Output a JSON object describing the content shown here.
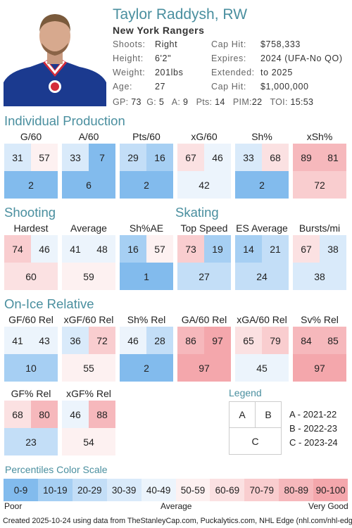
{
  "player": {
    "name": "Taylor Raddysh, RW",
    "team": "New York Rangers",
    "info_left": [
      {
        "label": "Shoots:",
        "value": "Right"
      },
      {
        "label": "Height:",
        "value": "6'2\""
      },
      {
        "label": "Weight:",
        "value": "201lbs"
      },
      {
        "label": "Age:",
        "value": "27"
      }
    ],
    "info_right": [
      {
        "label": "Cap Hit:",
        "value": "$758,333"
      },
      {
        "label": "Expires:",
        "value": "2024 (UFA-No QO)"
      },
      {
        "label": "Extended:",
        "value": "to 2025"
      },
      {
        "label": "Cap Hit:",
        "value": "$1,000,000"
      }
    ],
    "stats": [
      {
        "label": "GP:",
        "value": "73"
      },
      {
        "label": "G:",
        "value": "5"
      },
      {
        "label": "A:",
        "value": "9"
      },
      {
        "label": "Pts:",
        "value": "14"
      },
      {
        "label": "PIM:",
        "value": "22"
      },
      {
        "label": "TOI:",
        "value": "15:53"
      }
    ]
  },
  "sections": {
    "individual": "Individual Production",
    "shooting": "Shooting",
    "skating": "Skating",
    "onice": "On-Ice Relative"
  },
  "metrics": {
    "g60": {
      "label": "G/60",
      "a": "31",
      "b": "57",
      "c": "2",
      "pa": 31,
      "pb": 57,
      "pc": 2
    },
    "a60": {
      "label": "A/60",
      "a": "33",
      "b": "7",
      "c": "6",
      "pa": 33,
      "pb": 7,
      "pc": 6
    },
    "pts60": {
      "label": "Pts/60",
      "a": "29",
      "b": "16",
      "c": "2",
      "pa": 29,
      "pb": 16,
      "pc": 2
    },
    "xg60": {
      "label": "xG/60",
      "a": "67",
      "b": "46",
      "c": "42",
      "pa": 67,
      "pb": 46,
      "pc": 42
    },
    "shp": {
      "label": "Sh%",
      "a": "33",
      "b": "68",
      "c": "2",
      "pa": 33,
      "pb": 68,
      "pc": 2
    },
    "xshp": {
      "label": "xSh%",
      "a": "89",
      "b": "81",
      "c": "72",
      "pa": 89,
      "pb": 81,
      "pc": 72
    },
    "hardest": {
      "label": "Hardest",
      "a": "74",
      "b": "46",
      "c": "60",
      "pa": 74,
      "pb": 46,
      "pc": 60
    },
    "average": {
      "label": "Average",
      "a": "41",
      "b": "48",
      "c": "59",
      "pa": 41,
      "pb": 48,
      "pc": 59
    },
    "shpae": {
      "label": "Sh%AE",
      "a": "16",
      "b": "57",
      "c": "1",
      "pa": 16,
      "pb": 57,
      "pc": 1
    },
    "topspeed": {
      "label": "Top Speed",
      "a": "73",
      "b": "19",
      "c": "27",
      "pa": 73,
      "pb": 19,
      "pc": 27
    },
    "esavg": {
      "label": "ES Average",
      "a": "14",
      "b": "21",
      "c": "24",
      "pa": 14,
      "pb": 21,
      "pc": 24
    },
    "bursts": {
      "label": "Bursts/mi",
      "a": "67",
      "b": "38",
      "c": "38",
      "pa": 67,
      "pb": 38,
      "pc": 38
    },
    "gf60rel": {
      "label": "GF/60 Rel",
      "a": "41",
      "b": "43",
      "c": "10",
      "pa": 41,
      "pb": 43,
      "pc": 10
    },
    "xgf60rel": {
      "label": "xGF/60 Rel",
      "a": "36",
      "b": "72",
      "c": "55",
      "pa": 36,
      "pb": 72,
      "pc": 55
    },
    "shrel": {
      "label": "Sh% Rel",
      "a": "46",
      "b": "28",
      "c": "2",
      "pa": 46,
      "pb": 28,
      "pc": 2
    },
    "ga60rel": {
      "label": "GA/60 Rel",
      "a": "86",
      "b": "97",
      "c": "97",
      "pa": 86,
      "pb": 97,
      "pc": 97
    },
    "xga60rel": {
      "label": "xGA/60 Rel",
      "a": "65",
      "b": "79",
      "c": "45",
      "pa": 65,
      "pb": 79,
      "pc": 45
    },
    "svrel": {
      "label": "Sv% Rel",
      "a": "84",
      "b": "85",
      "c": "97",
      "pa": 84,
      "pb": 85,
      "pc": 97
    },
    "gfprel": {
      "label": "GF% Rel",
      "a": "68",
      "b": "80",
      "c": "23",
      "pa": 68,
      "pb": 80,
      "pc": 23
    },
    "xgfprel": {
      "label": "xGF% Rel",
      "a": "46",
      "b": "88",
      "c": "54",
      "pa": 46,
      "pb": 88,
      "pc": 54
    }
  },
  "legend": {
    "title": "Legend",
    "a": "A",
    "b": "B",
    "c": "C",
    "items": [
      "A - 2021-22",
      "B - 2022-23",
      "C - 2023-24"
    ]
  },
  "scale": {
    "title": "Percentiles Color Scale",
    "bins": [
      "0-9",
      "10-19",
      "20-29",
      "30-39",
      "40-49",
      "50-59",
      "60-69",
      "70-79",
      "80-89",
      "90-100"
    ],
    "colors": [
      "#82bbed",
      "#a6cff3",
      "#c3def7",
      "#d9eafa",
      "#ecf4fc",
      "#fdf1f1",
      "#fbe1e2",
      "#f9cdcf",
      "#f6b8bc",
      "#f4a7ac"
    ],
    "poor": "Poor",
    "average": "Average",
    "very_good": "Very Good"
  },
  "footer": "Created 2025-10-24 using data from TheStanleyCap.com, Puckalytics.com, NHL Edge (nhl.com/nhl-edge)."
}
